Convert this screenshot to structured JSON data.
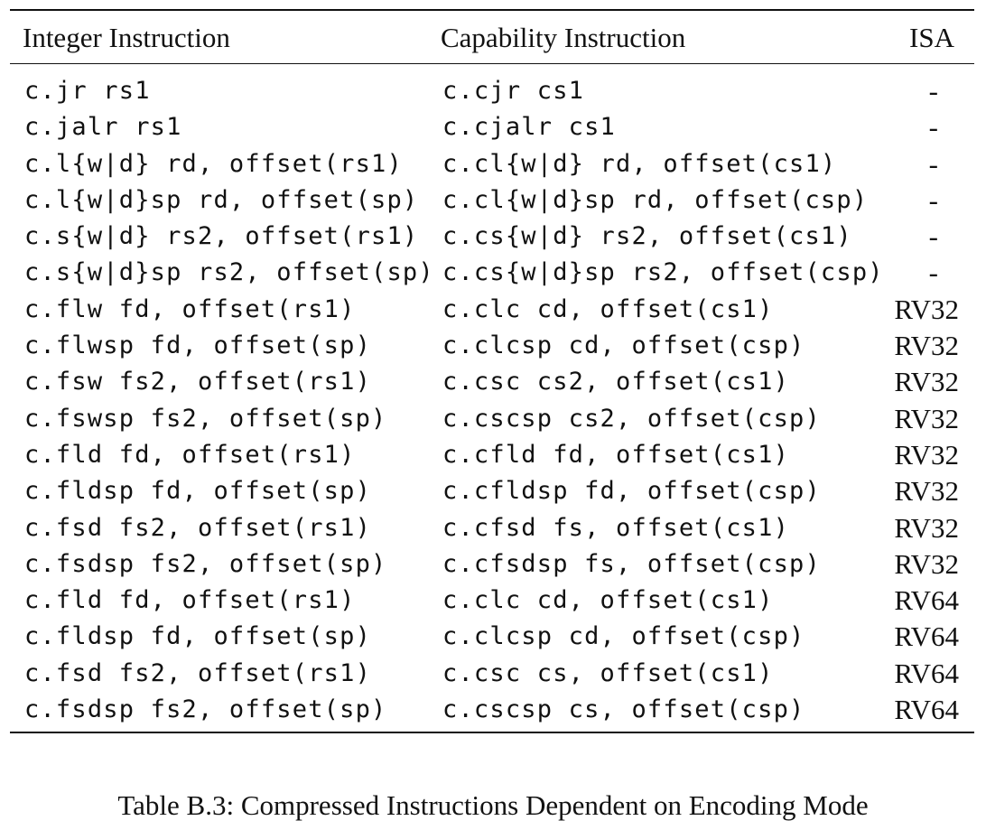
{
  "table": {
    "headers": {
      "integer": "Integer Instruction",
      "capability": "Capability Instruction",
      "isa": "ISA"
    },
    "rows": [
      {
        "integer": "c.jr rs1",
        "capability": "c.cjr cs1",
        "isa": "-"
      },
      {
        "integer": "c.jalr rs1",
        "capability": "c.cjalr cs1",
        "isa": "-"
      },
      {
        "integer": "c.l{w|d} rd, offset(rs1)",
        "capability": "c.cl{w|d} rd, offset(cs1)",
        "isa": "-"
      },
      {
        "integer": "c.l{w|d}sp rd, offset(sp)",
        "capability": "c.cl{w|d}sp rd, offset(csp)",
        "isa": "-"
      },
      {
        "integer": "c.s{w|d} rs2, offset(rs1)",
        "capability": "c.cs{w|d} rs2, offset(cs1)",
        "isa": "-"
      },
      {
        "integer": "c.s{w|d}sp rs2, offset(sp)",
        "capability": "c.cs{w|d}sp rs2, offset(csp)",
        "isa": "-"
      },
      {
        "integer": "c.flw fd, offset(rs1)",
        "capability": "c.clc cd, offset(cs1)",
        "isa": "RV32"
      },
      {
        "integer": "c.flwsp fd, offset(sp)",
        "capability": "c.clcsp cd, offset(csp)",
        "isa": "RV32"
      },
      {
        "integer": "c.fsw fs2, offset(rs1)",
        "capability": "c.csc cs2, offset(cs1)",
        "isa": "RV32"
      },
      {
        "integer": "c.fswsp fs2, offset(sp)",
        "capability": "c.cscsp cs2, offset(csp)",
        "isa": "RV32"
      },
      {
        "integer": "c.fld fd, offset(rs1)",
        "capability": "c.cfld fd, offset(cs1)",
        "isa": "RV32"
      },
      {
        "integer": "c.fldsp fd, offset(sp)",
        "capability": "c.cfldsp fd, offset(csp)",
        "isa": "RV32"
      },
      {
        "integer": "c.fsd fs2, offset(rs1)",
        "capability": "c.cfsd fs, offset(cs1)",
        "isa": "RV32"
      },
      {
        "integer": "c.fsdsp fs2, offset(sp)",
        "capability": "c.cfsdsp fs, offset(csp)",
        "isa": "RV32"
      },
      {
        "integer": "c.fld fd, offset(rs1)",
        "capability": "c.clc cd, offset(cs1)",
        "isa": "RV64"
      },
      {
        "integer": "c.fldsp fd, offset(sp)",
        "capability": "c.clcsp cd, offset(csp)",
        "isa": "RV64"
      },
      {
        "integer": "c.fsd fs2, offset(rs1)",
        "capability": "c.csc cs, offset(cs1)",
        "isa": "RV64"
      },
      {
        "integer": "c.fsdsp fs2, offset(sp)",
        "capability": "c.cscsp cs, offset(csp)",
        "isa": "RV64"
      }
    ]
  },
  "caption": "Table B.3: Compressed Instructions Dependent on Encoding Mode"
}
